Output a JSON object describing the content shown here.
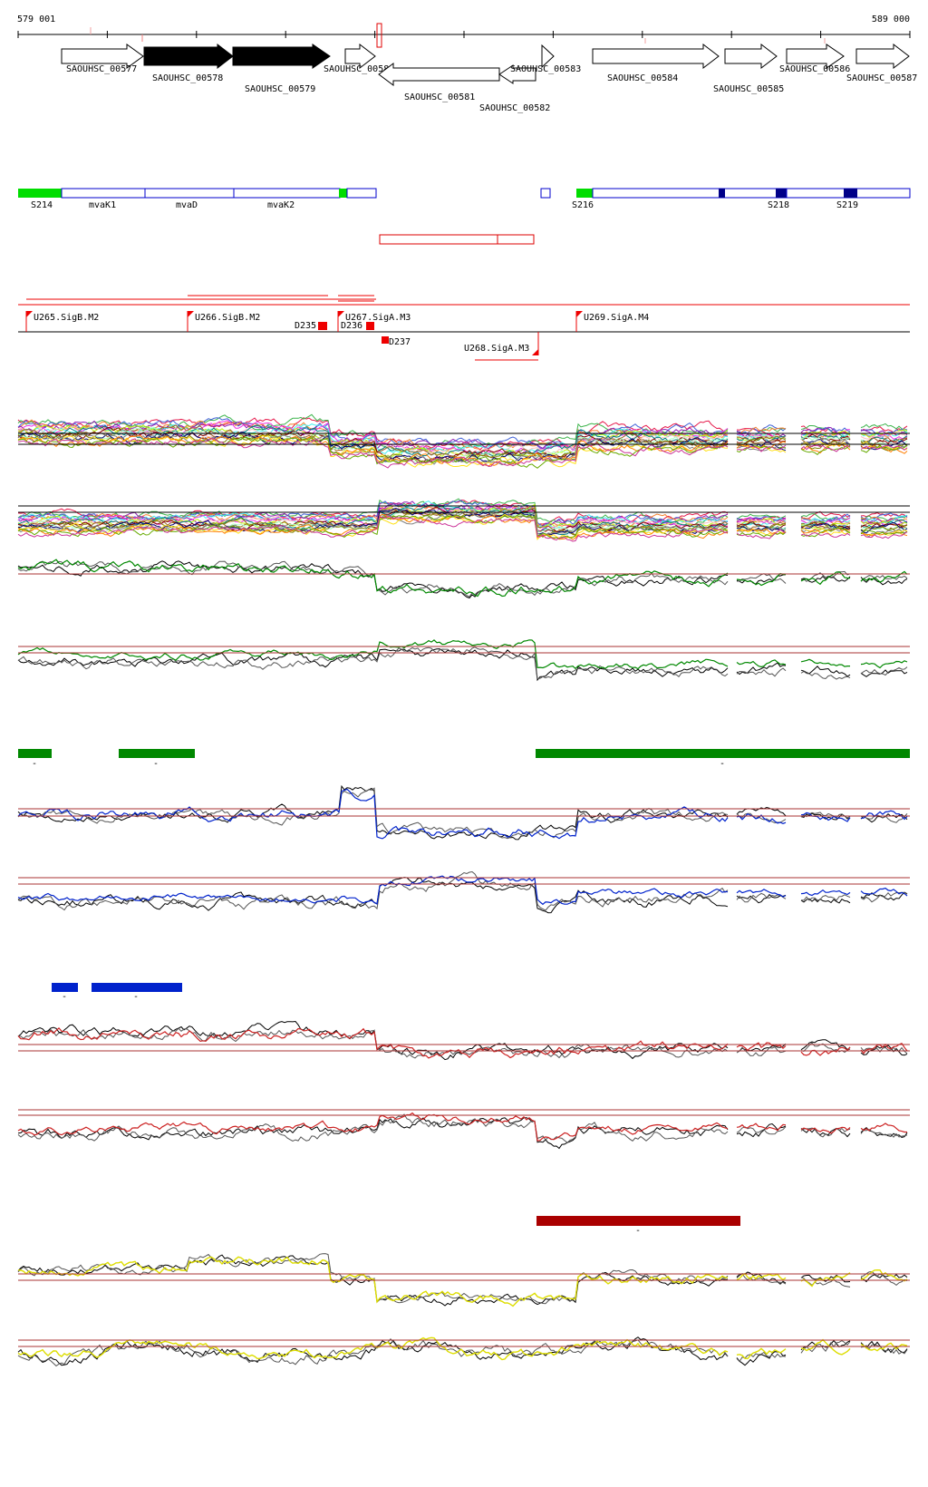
{
  "ruler": {
    "start_label": "579 001",
    "end_label": "589 000"
  },
  "genes": [
    {
      "id": "SAOUHSC_00577",
      "strand": "+",
      "filled": false
    },
    {
      "id": "SAOUHSC_00578",
      "strand": "+",
      "filled": true
    },
    {
      "id": "SAOUHSC_00579",
      "strand": "+",
      "filled": true
    },
    {
      "id": "SAOUHSC_00580",
      "strand": "+",
      "filled": false
    },
    {
      "id": "SAOUHSC_00581",
      "strand": "-",
      "filled": false
    },
    {
      "id": "SAOUHSC_00582",
      "strand": "-",
      "filled": false
    },
    {
      "id": "SAOUHSC_00583",
      "strand": "+",
      "filled": false
    },
    {
      "id": "SAOUHSC_00584",
      "strand": "+",
      "filled": false
    },
    {
      "id": "SAOUHSC_00585",
      "strand": "+",
      "filled": false
    },
    {
      "id": "SAOUHSC_00586",
      "strand": "+",
      "filled": false
    },
    {
      "id": "SAOUHSC_00587",
      "strand": "+",
      "filled": false
    }
  ],
  "operon_labels": [
    "S214",
    "mvaK1",
    "mvaD",
    "mvaK2",
    "S216",
    "S218",
    "S219"
  ],
  "promoters": [
    "U265.SigB.M2",
    "U266.SigB.M2",
    "U267.SigA.M3",
    "U268.SigA.M3",
    "U269.SigA.M4"
  ],
  "terminators": [
    "D235",
    "D236",
    "D237"
  ],
  "colors": {
    "gene_outline": "#000000",
    "operon_blue": "#0000cc",
    "operon_green": "#00dd00",
    "promoter_red": "#ee0000",
    "condition_green": "#008800",
    "condition_blue": "#0022cc",
    "condition_red": "#cc2222",
    "condition_darkred": "#aa0000",
    "condition_yellow": "#dddd00",
    "threshold_line": "#aa3333"
  },
  "condition_bars": [
    {
      "color": "green",
      "mark": "-"
    },
    {
      "color": "green",
      "mark": "-"
    },
    {
      "color": "green",
      "mark": "-"
    },
    {
      "color": "blue",
      "mark": "-"
    },
    {
      "color": "blue",
      "mark": "-"
    },
    {
      "color": "darkred",
      "mark": "-"
    }
  ]
}
